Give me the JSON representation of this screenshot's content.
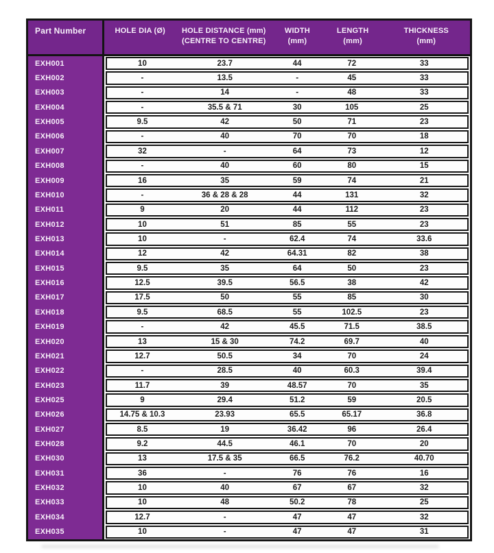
{
  "colors": {
    "header_bg": "#74268c",
    "part_column_bg": "#7e2b93",
    "border": "#141414",
    "row_bg": "#fdfdfd",
    "header_text": "#f7f0fa",
    "data_text": "#1c1c1c"
  },
  "table": {
    "columns": [
      {
        "line1": "Part Number",
        "line2": ""
      },
      {
        "line1": "HOLE DIA (Ø)",
        "line2": ""
      },
      {
        "line1": "HOLE DISTANCE (mm)",
        "line2": "(CENTRE TO CENTRE)"
      },
      {
        "line1": "WIDTH",
        "line2": "(mm)"
      },
      {
        "line1": "LENGTH",
        "line2": "(mm)"
      },
      {
        "line1": "THICKNESS",
        "line2": "(mm)"
      }
    ],
    "rows": [
      [
        "EXH001",
        "10",
        "23.7",
        "44",
        "72",
        "33"
      ],
      [
        "EXH002",
        "-",
        "13.5",
        "-",
        "45",
        "33"
      ],
      [
        "EXH003",
        "-",
        "14",
        "-",
        "48",
        "33"
      ],
      [
        "EXH004",
        "-",
        "35.5 & 71",
        "30",
        "105",
        "25"
      ],
      [
        "EXH005",
        "9.5",
        "42",
        "50",
        "71",
        "23"
      ],
      [
        "EXH006",
        "-",
        "40",
        "70",
        "70",
        "18"
      ],
      [
        "EXH007",
        "32",
        "-",
        "64",
        "73",
        "12"
      ],
      [
        "EXH008",
        "-",
        "40",
        "60",
        "80",
        "15"
      ],
      [
        "EXH009",
        "16",
        "35",
        "59",
        "74",
        "21"
      ],
      [
        "EXH010",
        "-",
        "36 & 28 & 28",
        "44",
        "131",
        "32"
      ],
      [
        "EXH011",
        "9",
        "20",
        "44",
        "112",
        "23"
      ],
      [
        "EXH012",
        "10",
        "51",
        "85",
        "55",
        "23"
      ],
      [
        "EXH013",
        "10",
        "-",
        "62.4",
        "74",
        "33.6"
      ],
      [
        "EXH014",
        "12",
        "42",
        "64.31",
        "82",
        "38"
      ],
      [
        "EXH015",
        "9.5",
        "35",
        "64",
        "50",
        "23"
      ],
      [
        "EXH016",
        "12.5",
        "39.5",
        "56.5",
        "38",
        "42"
      ],
      [
        "EXH017",
        "17.5",
        "50",
        "55",
        "85",
        "30"
      ],
      [
        "EXH018",
        "9.5",
        "68.5",
        "55",
        "102.5",
        "23"
      ],
      [
        "EXH019",
        "-",
        "42",
        "45.5",
        "71.5",
        "38.5"
      ],
      [
        "EXH020",
        "13",
        "15 & 30",
        "74.2",
        "69.7",
        "40"
      ],
      [
        "EXH021",
        "12.7",
        "50.5",
        "34",
        "70",
        "24"
      ],
      [
        "EXH022",
        "-",
        "28.5",
        "40",
        "60.3",
        "39.4"
      ],
      [
        "EXH023",
        "11.7",
        "39",
        "48.57",
        "70",
        "35"
      ],
      [
        "EXH025",
        "9",
        "29.4",
        "51.2",
        "59",
        "20.5"
      ],
      [
        "EXH026",
        "14.75 & 10.3",
        "23.93",
        "65.5",
        "65.17",
        "36.8"
      ],
      [
        "EXH027",
        "8.5",
        "19",
        "36.42",
        "96",
        "26.4"
      ],
      [
        "EXH028",
        "9.2",
        "44.5",
        "46.1",
        "70",
        "20"
      ],
      [
        "EXH030",
        "13",
        "17.5 & 35",
        "66.5",
        "76.2",
        "40.70"
      ],
      [
        "EXH031",
        "36",
        "-",
        "76",
        "76",
        "16"
      ],
      [
        "EXH032",
        "10",
        "40",
        "67",
        "67",
        "32"
      ],
      [
        "EXH033",
        "10",
        "48",
        "50.2",
        "78",
        "25"
      ],
      [
        "EXH034",
        "12.7",
        "-",
        "47",
        "47",
        "32"
      ],
      [
        "EXH035",
        "10",
        "-",
        "47",
        "47",
        "31"
      ]
    ]
  }
}
